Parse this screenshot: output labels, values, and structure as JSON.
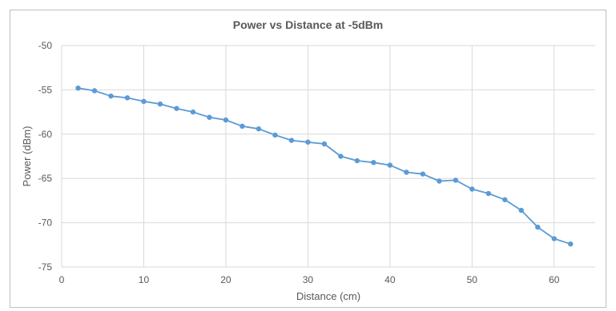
{
  "chart_data": {
    "type": "line",
    "title": "Power vs Distance at -5dBm",
    "xlabel": "Distance (cm)",
    "ylabel": "Power (dBm)",
    "xlim": [
      0,
      65
    ],
    "ylim": [
      -75,
      -50
    ],
    "x_ticks": [
      0,
      10,
      20,
      30,
      40,
      50,
      60
    ],
    "y_ticks": [
      -50,
      -55,
      -60,
      -65,
      -70,
      -75
    ],
    "grid": true,
    "legend": "none",
    "series_color": "#5b9bd5",
    "series": [
      {
        "x": [
          2,
          4,
          6,
          8,
          10,
          12,
          14,
          16,
          18,
          20,
          22,
          24,
          26,
          28,
          30,
          32,
          34,
          36,
          38,
          40,
          42,
          44,
          46,
          48,
          50,
          52,
          54,
          56,
          58,
          60,
          62
        ],
        "values": [
          -54.8,
          -55.1,
          -55.7,
          -55.9,
          -56.3,
          -56.6,
          -57.1,
          -57.5,
          -58.1,
          -58.4,
          -59.1,
          -59.4,
          -60.1,
          -60.7,
          -60.9,
          -61.1,
          -62.5,
          -63.0,
          -63.2,
          -63.5,
          -64.3,
          -64.5,
          -65.3,
          -65.2,
          -66.2,
          -66.7,
          -67.4,
          -68.6,
          -70.5,
          -71.8,
          -72.4
        ]
      }
    ]
  }
}
